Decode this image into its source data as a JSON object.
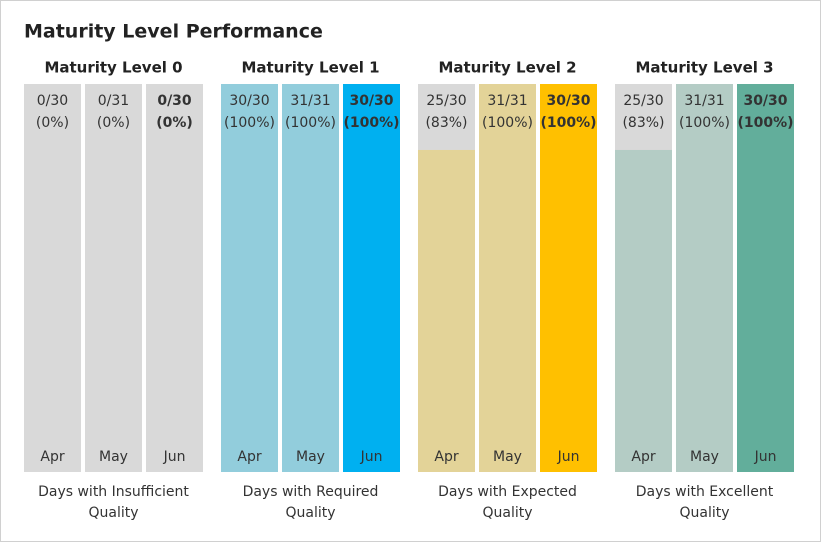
{
  "chart_data": {
    "type": "bar",
    "title": "Maturity Level Performance",
    "ylim": [
      0,
      100
    ],
    "background_color": "#d9d9d9",
    "groups": [
      {
        "title": "Maturity Level 0",
        "caption_lines": [
          "Days with Insufficient",
          "Quality"
        ],
        "categories": [
          "Apr",
          "May",
          "Jun"
        ],
        "values": [
          0,
          0,
          0
        ],
        "value_labels": [
          "(0%)",
          "(0%)",
          "(0%)"
        ],
        "ratio_labels": [
          "0/30",
          "0/31",
          "0/30"
        ],
        "colors": [
          "#d9d9d9",
          "#d9d9d9",
          "#d9d9d9"
        ]
      },
      {
        "title": "Maturity Level 1",
        "caption_lines": [
          "Days with Required",
          "Quality"
        ],
        "categories": [
          "Apr",
          "May",
          "Jun"
        ],
        "values": [
          100,
          100,
          100
        ],
        "value_labels": [
          "(100%)",
          "(100%)",
          "(100%)"
        ],
        "ratio_labels": [
          "30/30",
          "31/31",
          "30/30"
        ],
        "colors": [
          "#92cddc",
          "#92cddc",
          "#00b0f0"
        ]
      },
      {
        "title": "Maturity Level 2",
        "caption_lines": [
          "Days with Expected",
          "Quality"
        ],
        "categories": [
          "Apr",
          "May",
          "Jun"
        ],
        "values": [
          83,
          100,
          100
        ],
        "value_labels": [
          "(83%)",
          "(100%)",
          "(100%)"
        ],
        "ratio_labels": [
          "25/30",
          "31/31",
          "30/30"
        ],
        "colors": [
          "#e3d398",
          "#e3d398",
          "#ffc000"
        ]
      },
      {
        "title": "Maturity Level 3",
        "caption_lines": [
          "Days with Excellent",
          "Quality"
        ],
        "categories": [
          "Apr",
          "May",
          "Jun"
        ],
        "values": [
          83,
          100,
          100
        ],
        "value_labels": [
          "(83%)",
          "(100%)",
          "(100%)"
        ],
        "ratio_labels": [
          "25/30",
          "31/31",
          "30/30"
        ],
        "colors": [
          "#b4ccc5",
          "#b4ccc5",
          "#62ae9b"
        ]
      }
    ]
  }
}
